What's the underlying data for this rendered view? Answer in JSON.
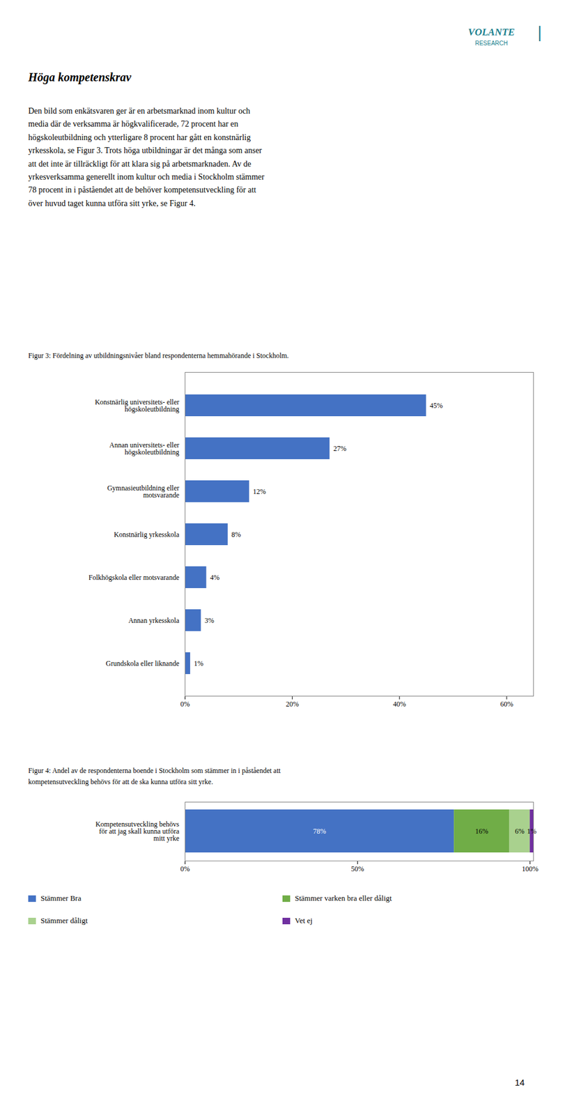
{
  "title": "Höga kompetenskrav",
  "body": [
    "Den bild som enkätsvaren ger är en arbetsmarknad inom kultur och",
    "media där de verksamma är högkvalificerade, 72 procent har en",
    "högskoleutbildning och ytterligare 8 procent har gått en konstnärlig",
    "yrkesskola, se Figur 3. Trots höga utbildningar är det många som anser",
    "att det inte är tillräckligt för att klara sig på arbetsmarknaden. Av de",
    "yrkesverksamma generellt inom kultur och media i Stockholm stämmer",
    "78 procent in i påståendet att de behöver kompetensutveckling för att",
    "över huvud taget kunna utföra sitt yrke, se Figur 4."
  ],
  "logo": {
    "texts": [
      "VOLANTE",
      "RESEARCH",
      "|"
    ],
    "color": "#1B7F8E"
  },
  "page_number": "14",
  "chart_data": [
    {
      "type": "bar",
      "orientation": "horizontal",
      "title": "Figur 3: Fördelning av utbildningsnivåer bland respondenterna hemmahörande i Stockholm.",
      "categories": [
        "Konstnärlig universitets- eller\nhögskoleutbildning",
        "Annan universitets- eller\nhögskoleutbildning",
        "Gymnasieutbildning eller\nmotsvarande",
        "Konstnärlig yrkesskola",
        "Folkhögskola eller motsvarande",
        "Annan yrkesskola",
        "Grundskola eller liknande"
      ],
      "values": [
        45,
        27,
        12,
        8,
        4,
        3,
        1
      ],
      "value_labels": [
        "45%",
        "27%",
        "12%",
        "8%",
        "4%",
        "3%",
        "1%"
      ],
      "data_labels": true,
      "color": "#4472C4",
      "xlim": [
        0,
        65
      ],
      "xticks": [
        {
          "value": 0,
          "label": "0%"
        },
        {
          "value": 20,
          "label": "20%"
        },
        {
          "value": 40,
          "label": "40%"
        },
        {
          "value": 60,
          "label": "60%"
        }
      ],
      "grid": false
    },
    {
      "type": "bar",
      "orientation": "horizontal",
      "stacked": true,
      "title": "Figur 4: Andel av de respondenterna boende i Stockholm som stämmer in i påståendet att\nkompetensutveckling behövs för att de ska kunna utföra sitt yrke.",
      "categories": [
        "Kompetensutveckling behövs\nför att jag skall kunna utföra\nmitt yrke"
      ],
      "series": [
        {
          "name": "Stämmer Bra",
          "color": "#4472C4",
          "values": [
            78
          ],
          "value_labels": [
            "78%"
          ]
        },
        {
          "name": "Stämmer varken bra eller dåligt",
          "color": "#70AD47",
          "values": [
            16
          ],
          "value_labels": [
            "16%"
          ]
        },
        {
          "name": "Stämmer dåligt",
          "color": "#A9D18E",
          "values": [
            6
          ],
          "value_labels": [
            "6%"
          ]
        },
        {
          "name": "Vet ej",
          "color": "#7030A0",
          "values": [
            1
          ],
          "value_labels": [
            "1%"
          ]
        }
      ],
      "data_labels": true,
      "legend": "bottom",
      "xlim": [
        0,
        101
      ],
      "xticks": [
        {
          "value": 0,
          "label": "0%"
        },
        {
          "value": 50,
          "label": "50%"
        },
        {
          "value": 100,
          "label": "100%"
        }
      ],
      "grid": false
    }
  ]
}
